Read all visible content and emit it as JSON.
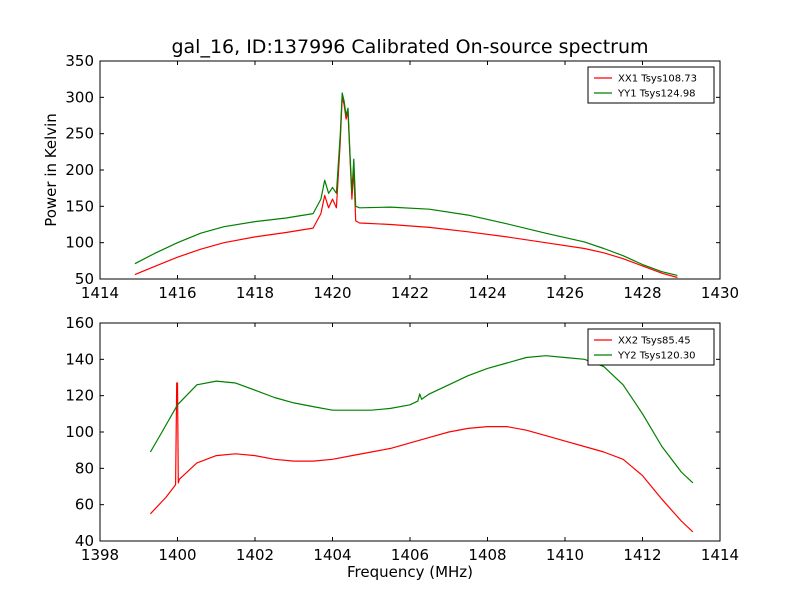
{
  "figure": {
    "title": "gal_16, ID:137996 Calibrated On-source spectrum"
  },
  "chart_data": [
    {
      "type": "line",
      "title": "gal_16, ID:137996 Calibrated On-source spectrum",
      "xlabel": "",
      "ylabel": "Power in Kelvin",
      "xlim": [
        1414,
        1430
      ],
      "ylim": [
        50,
        350
      ],
      "xticks": [
        "1414",
        "1416",
        "1418",
        "1420",
        "1422",
        "1424",
        "1426",
        "1428",
        "1430"
      ],
      "yticks": [
        "50",
        "100",
        "150",
        "200",
        "250",
        "300",
        "350"
      ],
      "legend_position": "top-right",
      "grid": false,
      "series": [
        {
          "name": "XX1 Tsys108.73",
          "color": "#ff0000",
          "x": [
            1414.9,
            1415.4,
            1416.0,
            1416.6,
            1417.2,
            1418.0,
            1418.8,
            1419.5,
            1419.7,
            1419.8,
            1419.9,
            1420.0,
            1420.1,
            1420.2,
            1420.25,
            1420.3,
            1420.35,
            1420.4,
            1420.45,
            1420.5,
            1420.55,
            1420.6,
            1420.7,
            1421.5,
            1422.5,
            1423.5,
            1424.5,
            1425.5,
            1426.5,
            1427.0,
            1427.5,
            1428.0,
            1428.5,
            1428.9
          ],
          "y": [
            56,
            67,
            80,
            91,
            100,
            108,
            114,
            120,
            140,
            165,
            148,
            160,
            148,
            240,
            300,
            290,
            270,
            280,
            220,
            160,
            200,
            130,
            127,
            125,
            121,
            115,
            108,
            100,
            92,
            86,
            78,
            68,
            58,
            52
          ]
        },
        {
          "name": "YY1 Tsys124.98",
          "color": "#008000",
          "x": [
            1414.9,
            1415.4,
            1416.0,
            1416.6,
            1417.2,
            1418.0,
            1418.8,
            1419.5,
            1419.7,
            1419.8,
            1419.9,
            1420.0,
            1420.1,
            1420.2,
            1420.25,
            1420.3,
            1420.35,
            1420.4,
            1420.45,
            1420.5,
            1420.55,
            1420.6,
            1420.7,
            1421.5,
            1422.5,
            1423.5,
            1424.5,
            1425.5,
            1426.5,
            1427.0,
            1427.5,
            1428.0,
            1428.5,
            1428.9
          ],
          "y": [
            71,
            85,
            100,
            113,
            122,
            129,
            134,
            140,
            160,
            186,
            168,
            176,
            168,
            250,
            306,
            295,
            275,
            285,
            225,
            170,
            215,
            150,
            148,
            149,
            146,
            138,
            126,
            113,
            101,
            92,
            82,
            70,
            60,
            55
          ]
        }
      ]
    },
    {
      "type": "line",
      "title": "",
      "xlabel": "Frequency (MHz)",
      "ylabel": "",
      "xlim": [
        1398,
        1414
      ],
      "ylim": [
        40,
        160
      ],
      "xticks": [
        "1398",
        "1400",
        "1402",
        "1404",
        "1406",
        "1408",
        "1410",
        "1412",
        "1414"
      ],
      "yticks": [
        "40",
        "60",
        "80",
        "100",
        "120",
        "140",
        "160"
      ],
      "legend_position": "top-right",
      "grid": false,
      "series": [
        {
          "name": "XX2 Tsys85.45",
          "color": "#ff0000",
          "x": [
            1399.3,
            1399.7,
            1399.95,
            1399.98,
            1400.0,
            1400.02,
            1400.05,
            1400.5,
            1401.0,
            1401.5,
            1402.0,
            1402.5,
            1403.0,
            1403.5,
            1404.0,
            1404.5,
            1405.0,
            1405.5,
            1406.0,
            1406.5,
            1407.0,
            1407.5,
            1408.0,
            1408.5,
            1409.0,
            1409.5,
            1410.0,
            1410.5,
            1411.0,
            1411.5,
            1412.0,
            1412.5,
            1413.0,
            1413.3
          ],
          "y": [
            55,
            64,
            71,
            127,
            127,
            72,
            74,
            83,
            87,
            88,
            87,
            85,
            84,
            84,
            85,
            87,
            89,
            91,
            94,
            97,
            100,
            102,
            103,
            103,
            101,
            98,
            95,
            92,
            89,
            85,
            76,
            63,
            51,
            45
          ]
        },
        {
          "name": "YY2 Tsys120.30",
          "color": "#008000",
          "x": [
            1399.3,
            1399.6,
            1400.0,
            1400.5,
            1401.0,
            1401.5,
            1402.0,
            1402.5,
            1403.0,
            1403.5,
            1404.0,
            1404.5,
            1405.0,
            1405.5,
            1406.0,
            1406.2,
            1406.25,
            1406.3,
            1406.5,
            1407.0,
            1407.5,
            1408.0,
            1408.5,
            1409.0,
            1409.5,
            1410.0,
            1410.5,
            1411.0,
            1411.5,
            1412.0,
            1412.5,
            1413.0,
            1413.3
          ],
          "y": [
            89,
            100,
            115,
            126,
            128,
            127,
            123,
            119,
            116,
            114,
            112,
            112,
            112,
            113,
            115,
            117,
            121,
            118,
            121,
            126,
            131,
            135,
            138,
            141,
            142,
            141,
            140,
            136,
            126,
            110,
            92,
            78,
            72
          ]
        }
      ]
    }
  ]
}
